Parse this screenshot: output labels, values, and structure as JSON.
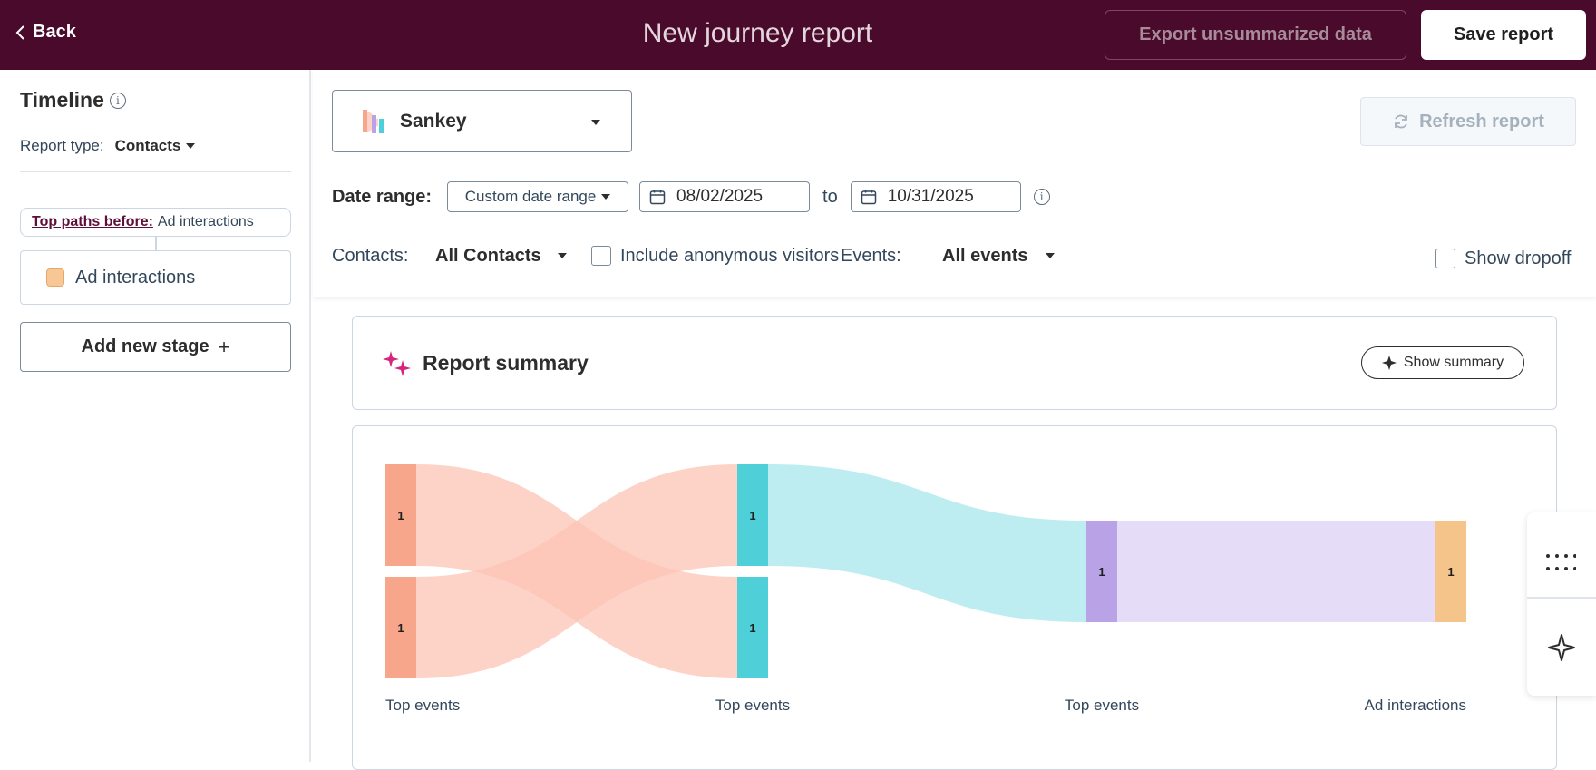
{
  "header": {
    "back_label": "Back",
    "title": "New journey report",
    "export_label": "Export unsummarized data",
    "save_label": "Save report"
  },
  "sidebar": {
    "title": "Timeline",
    "report_type_label": "Report type:",
    "report_type_value": "Contacts",
    "top_paths_link": "Top paths before:",
    "top_paths_value": "Ad interactions",
    "stage_label": "Ad interactions",
    "stage_color": "#f7c796",
    "add_stage_label": "Add new stage",
    "add_stage_icon": "+"
  },
  "controls": {
    "visualization": "Sankey",
    "refresh_label": "Refresh report",
    "date_range_label": "Date range:",
    "date_range_select": "Custom date range",
    "start_date": "08/02/2025",
    "to_label": "to",
    "end_date": "10/31/2025",
    "contacts_label": "Contacts:",
    "contacts_value": "All Contacts",
    "anonymous_label": "Include anonymous visitors",
    "events_label": "Events:",
    "events_value": "All events",
    "dropoff_label": "Show dropoff"
  },
  "summary": {
    "title": "Report summary",
    "button_label": "Show summary"
  },
  "chart_data": {
    "type": "sankey",
    "stages": [
      "Top events",
      "Top events",
      "Top events",
      "Ad interactions"
    ],
    "nodes": [
      {
        "stage": 0,
        "value": 1,
        "label": "1",
        "color": "#f7a68c"
      },
      {
        "stage": 0,
        "value": 1,
        "label": "1",
        "color": "#f7a68c"
      },
      {
        "stage": 1,
        "value": 1,
        "label": "1",
        "color": "#4fd0d8"
      },
      {
        "stage": 1,
        "value": 1,
        "label": "1",
        "color": "#4fd0d8"
      },
      {
        "stage": 2,
        "value": 1,
        "label": "1",
        "color": "#b9a3e6"
      },
      {
        "stage": 3,
        "value": 1,
        "label": "1",
        "color": "#f5c48a"
      }
    ],
    "links": [
      {
        "source": 0,
        "target": 3,
        "value": 1,
        "color": "#fcc4b6"
      },
      {
        "source": 1,
        "target": 2,
        "value": 1,
        "color": "#fcc4b6"
      },
      {
        "source": 2,
        "target": 4,
        "value": 1,
        "color": "#a7e6ec"
      },
      {
        "source": 4,
        "target": 5,
        "value": 1,
        "color": "#dcd2f5"
      }
    ]
  },
  "icons": {
    "back": "chevron-left-icon",
    "info": "info-icon",
    "calendar": "calendar-icon",
    "refresh": "refresh-icon",
    "sparkle": "sparkle-icon",
    "grid": "grid-dots-icon",
    "ai_star": "star-icon"
  },
  "colors": {
    "header_bg": "#4a0a2c",
    "accent": "#5e0e3a",
    "sparkle": "#d6257c"
  }
}
